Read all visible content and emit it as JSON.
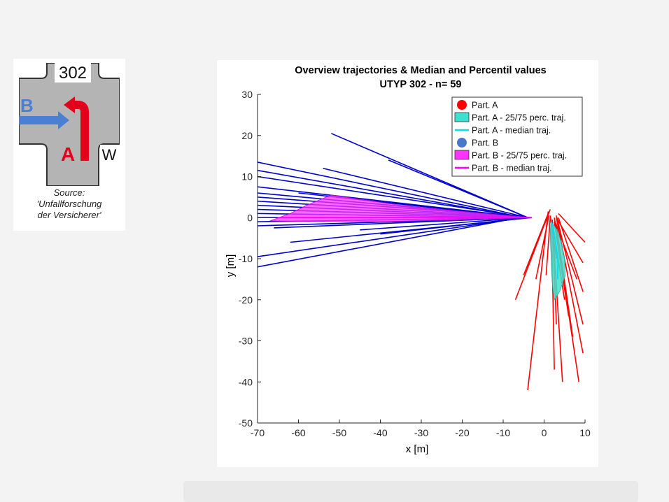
{
  "diagram": {
    "number": "302",
    "label_a": "A",
    "label_b": "B",
    "label_w": "W",
    "source_lines": [
      "Source:",
      "'Unfallforschung",
      "der Versicherer'"
    ],
    "colors": {
      "road": "#b4b4b4",
      "participant_a": "#e3001b",
      "participant_b": "#4a7fd4"
    }
  },
  "chart_data": {
    "type": "line",
    "title": "Overview trajectories & Median and Percentil values",
    "subtitle": "UTYP 302 - n= 59",
    "xlabel": "x [m]",
    "ylabel": "y [m]",
    "xlim": [
      -70,
      10
    ],
    "ylim": [
      -50,
      30
    ],
    "xticks": [
      -70,
      -60,
      -50,
      -40,
      -30,
      -20,
      -10,
      0,
      10
    ],
    "yticks": [
      30,
      20,
      10,
      0,
      -10,
      -20,
      -30,
      -40,
      -50
    ],
    "grid": false,
    "legend_position": "top-right",
    "legend": [
      {
        "label": "Part. A",
        "kind": "marker",
        "color": "#ff0000"
      },
      {
        "label": "Part. A - 25/75 perc. traj.",
        "kind": "patch",
        "color": "#40e0d0"
      },
      {
        "label": "Part. A - median traj.",
        "kind": "line",
        "color": "#00e0f0"
      },
      {
        "label": "Part. B",
        "kind": "marker",
        "color": "#4a78c8"
      },
      {
        "label": "Part. B - 25/75 perc. traj.",
        "kind": "patch",
        "color": "#ff33ff"
      },
      {
        "label": "Part. B - median traj.",
        "kind": "line",
        "color": "#ff00ff"
      }
    ],
    "colors": {
      "part_a": "#ff0000",
      "part_b": "#0000cc"
    },
    "part_b_band": [
      [
        -3,
        0
      ],
      [
        -20,
        1.5
      ],
      [
        -35,
        3
      ],
      [
        -52,
        5.5
      ],
      [
        -58,
        3
      ],
      [
        -62,
        1
      ],
      [
        -67,
        -0.8
      ],
      [
        -55,
        -1
      ],
      [
        -40,
        -1
      ],
      [
        -20,
        -0.5
      ],
      [
        -3,
        0
      ]
    ],
    "part_b_median": [
      [
        -65,
        0
      ],
      [
        -3,
        0
      ]
    ],
    "part_a_band": [
      [
        1.8,
        -1
      ],
      [
        3.2,
        -3
      ],
      [
        4.2,
        -6
      ],
      [
        5,
        -10
      ],
      [
        5.2,
        -14
      ],
      [
        3.8,
        -18
      ],
      [
        2.5,
        -20
      ],
      [
        2,
        -16
      ],
      [
        1.8,
        -12
      ],
      [
        1.6,
        -7
      ],
      [
        1.5,
        -3
      ],
      [
        1.8,
        -1
      ]
    ],
    "part_a_median": [
      [
        1.7,
        -1
      ],
      [
        2.8,
        -6
      ],
      [
        3.4,
        -11
      ],
      [
        3.3,
        -15
      ]
    ],
    "part_b_trajectories": [
      [
        [
          -52,
          20.5
        ],
        [
          -4,
          0
        ]
      ],
      [
        [
          -70,
          13.5
        ],
        [
          -5,
          0
        ]
      ],
      [
        [
          -70,
          11.5
        ],
        [
          -5,
          0
        ]
      ],
      [
        [
          -70,
          10
        ],
        [
          -4,
          0
        ]
      ],
      [
        [
          -70,
          7.5
        ],
        [
          -4,
          0
        ]
      ],
      [
        [
          -70,
          6
        ],
        [
          -5,
          0
        ]
      ],
      [
        [
          -70,
          5
        ],
        [
          -3,
          0
        ]
      ],
      [
        [
          -70,
          4
        ],
        [
          -4,
          0
        ]
      ],
      [
        [
          -70,
          3
        ],
        [
          -4,
          0
        ]
      ],
      [
        [
          -70,
          2
        ],
        [
          -3,
          0
        ]
      ],
      [
        [
          -70,
          1
        ],
        [
          -3,
          0
        ]
      ],
      [
        [
          -70,
          0
        ],
        [
          -3,
          0
        ]
      ],
      [
        [
          -70,
          -1
        ],
        [
          -3,
          0
        ]
      ],
      [
        [
          -70,
          -2
        ],
        [
          -3,
          0
        ]
      ],
      [
        [
          -70,
          -9.5
        ],
        [
          -5,
          0
        ]
      ],
      [
        [
          -70,
          -12
        ],
        [
          -6,
          0
        ]
      ],
      [
        [
          -38,
          14
        ],
        [
          -4,
          0
        ]
      ],
      [
        [
          -54,
          12
        ],
        [
          -4,
          0
        ]
      ],
      [
        [
          -60,
          6
        ],
        [
          -5,
          0
        ]
      ],
      [
        [
          -62,
          -6
        ],
        [
          -3,
          0
        ]
      ],
      [
        [
          -45,
          -3
        ],
        [
          -4,
          0
        ]
      ],
      [
        [
          -40,
          -4
        ],
        [
          -4,
          0
        ]
      ],
      [
        [
          -66,
          -2.5
        ],
        [
          -4,
          0
        ]
      ]
    ],
    "part_a_trajectories": [
      [
        [
          1.5,
          2
        ],
        [
          -7,
          -20
        ]
      ],
      [
        [
          1,
          1.5
        ],
        [
          -4,
          -42
        ]
      ],
      [
        [
          1,
          1
        ],
        [
          -5,
          -14
        ]
      ],
      [
        [
          1.2,
          0.5
        ],
        [
          -2,
          -15
        ]
      ],
      [
        [
          1.5,
          0
        ],
        [
          0.5,
          -14
        ]
      ],
      [
        [
          1.8,
          -1
        ],
        [
          2.5,
          -37
        ]
      ],
      [
        [
          2,
          -0.5
        ],
        [
          3,
          -26
        ]
      ],
      [
        [
          2,
          -1
        ],
        [
          4.5,
          -40
        ]
      ],
      [
        [
          2.5,
          0
        ],
        [
          8.5,
          -40
        ]
      ],
      [
        [
          3,
          0
        ],
        [
          9.5,
          -33
        ]
      ],
      [
        [
          3,
          0.5
        ],
        [
          9.5,
          -26
        ]
      ],
      [
        [
          3.5,
          1
        ],
        [
          10,
          -6
        ]
      ],
      [
        [
          3,
          0
        ],
        [
          9.5,
          -11
        ]
      ],
      [
        [
          3.5,
          0
        ],
        [
          9.5,
          -18
        ]
      ],
      [
        [
          2.5,
          -1
        ],
        [
          6,
          -24
        ]
      ],
      [
        [
          3,
          -2
        ],
        [
          7,
          -29
        ]
      ],
      [
        [
          2,
          -1
        ],
        [
          5,
          -20
        ]
      ],
      [
        [
          2.5,
          -0.5
        ],
        [
          8,
          -15
        ]
      ],
      [
        [
          1.5,
          0.5
        ],
        [
          3,
          -10
        ]
      ]
    ]
  }
}
